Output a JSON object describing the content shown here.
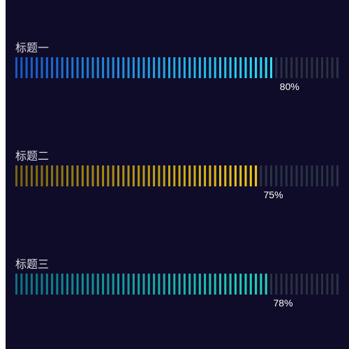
{
  "chart_data": {
    "type": "bar",
    "orientation": "horizontal",
    "style": "segmented-progress",
    "ylim": [
      0,
      100
    ],
    "bars": [
      {
        "category": "标题一",
        "value": 80,
        "label": "80%",
        "gradient": [
          "#1a56c7",
          "#2ee0f7"
        ]
      },
      {
        "category": "标题二",
        "value": 75,
        "label": "75%",
        "gradient": [
          "#7a6410",
          "#f2c91a"
        ]
      },
      {
        "category": "标题三",
        "value": 78,
        "label": "78%",
        "gradient": [
          "#0e6f82",
          "#22d8c0"
        ]
      }
    ],
    "track_color": "#2b3144",
    "background": "#0f0c29"
  }
}
